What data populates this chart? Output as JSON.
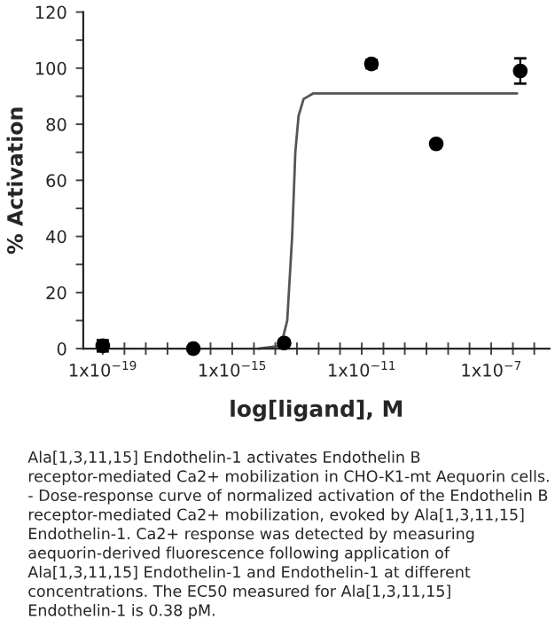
{
  "chart_data": {
    "type": "scatter",
    "xlabel": "log[ligand], M",
    "ylabel": "% Activation",
    "x": [
      1e-19,
      6.3e-17,
      4e-14,
      2e-11,
      2e-09,
      7.9e-07
    ],
    "log": "x",
    "series": [
      {
        "color": "#000000",
        "marker": "circle",
        "values": [
          1,
          0,
          2,
          101.5,
          73,
          99
        ],
        "errors": [
          2,
          null,
          null,
          1.5,
          null,
          4.5
        ]
      },
      {
        "type": "line",
        "color": "#555555",
        "marker": "none",
        "x": [
          6.3e-15,
          3.2e-14,
          5e-14,
          7.1e-14,
          8.9e-14,
          1.12e-13,
          1.6e-13,
          3.2e-13,
          6.3e-07
        ],
        "values": [
          0,
          1,
          10,
          40,
          70,
          83,
          89,
          91,
          91
        ]
      }
    ],
    "xlim": [
      2.5e-20,
      6.3e-06
    ],
    "ylim": [
      0,
      120
    ],
    "xticks": [
      {
        "value": 1e-19,
        "label": "1x10$^{−19}$"
      },
      {
        "value": 4.68e-19,
        "label": null
      },
      {
        "value": 2.14e-18,
        "label": null
      },
      {
        "value": 1e-17,
        "label": null
      },
      {
        "value": 4.68e-17,
        "label": null
      },
      {
        "value": 2.14e-16,
        "label": null
      },
      {
        "value": 1e-15,
        "label": "1x10$^{−15}$"
      },
      {
        "value": 4.68e-15,
        "label": null
      },
      {
        "value": 2.14e-14,
        "label": null
      },
      {
        "value": 1e-13,
        "label": null
      },
      {
        "value": 4.68e-13,
        "label": null
      },
      {
        "value": 2.14e-12,
        "label": null
      },
      {
        "value": 1e-11,
        "label": "1x10$^{−11}$"
      },
      {
        "value": 4.68e-11,
        "label": null
      },
      {
        "value": 2.14e-10,
        "label": null
      },
      {
        "value": 1e-09,
        "label": null
      },
      {
        "value": 4.68e-09,
        "label": null
      },
      {
        "value": 2.14e-08,
        "label": null
      },
      {
        "value": 1e-07,
        "label": "1x10$^{−7}$"
      },
      {
        "value": 4.68e-07,
        "label": null
      },
      {
        "value": 2.14e-06,
        "label": null
      }
    ],
    "yticks": [
      0,
      {
        "value": 10,
        "label": null
      },
      20,
      {
        "value": 30,
        "label": null
      },
      40,
      {
        "value": 50,
        "label": null
      },
      60,
      {
        "value": 70,
        "label": null
      },
      80,
      {
        "value": 90,
        "label": null
      },
      100,
      {
        "value": 110,
        "label": null
      },
      120
    ],
    "grid": false,
    "legend": false,
    "annotations": [
      "Ala[1,3,11,15] Endothelin-1 activates Endothelin B receptor-mediated Ca2+ mobilization in CHO-K1-mt Aequorin cells. - Dose-response curve of normalized activation of the Endothelin B receptor-mediated Ca2+ mobilization, evoked by Ala[1,3,11,15] Endothelin-1. Ca2+ response was detected by measuring aequorin-derived fluorescence following application of Ala[1,3,11,15] Endothelin-1 and Endothelin-1 at different concentrations. The EC50 measured for Ala[1,3,11,15] Endothelin-1 is 0.38 pM."
    ]
  }
}
